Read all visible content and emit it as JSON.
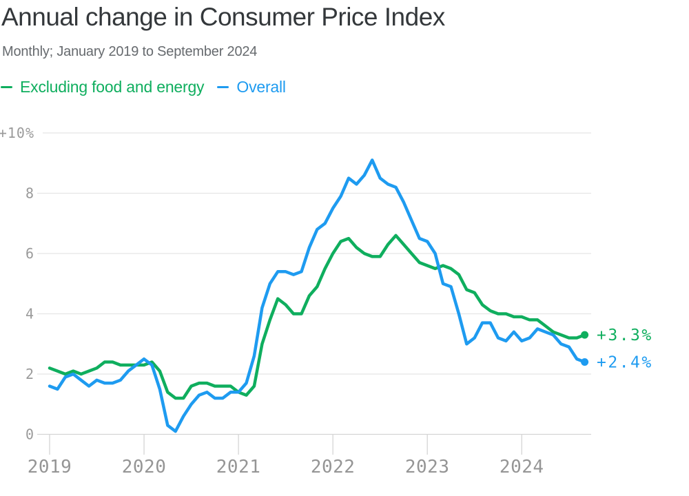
{
  "chart_data": {
    "type": "line",
    "title": "Annual change in Consumer Price Index",
    "subtitle": "Monthly; January 2019 to September 2024",
    "x_start": "2019-01",
    "x_end": "2024-09",
    "x_frequency": "monthly",
    "x_tick_labels": [
      "2019",
      "2020",
      "2021",
      "2022",
      "2023",
      "2024"
    ],
    "y_ticks": [
      0,
      2,
      4,
      6,
      8,
      10
    ],
    "y_tick_labels": [
      "0",
      "2",
      "4",
      "6",
      "8",
      "+10%"
    ],
    "ylim": [
      0,
      10
    ],
    "grid": "horizontal-only",
    "legend_position": "top-left",
    "background": "#ffffff",
    "series": [
      {
        "name": "Excluding food and energy",
        "color": "#0fae5e",
        "end_label": "+3.3%",
        "values": [
          2.2,
          2.1,
          2.0,
          2.1,
          2.0,
          2.1,
          2.2,
          2.4,
          2.4,
          2.3,
          2.3,
          2.3,
          2.3,
          2.4,
          2.1,
          1.4,
          1.2,
          1.2,
          1.6,
          1.7,
          1.7,
          1.6,
          1.6,
          1.6,
          1.4,
          1.3,
          1.6,
          3.0,
          3.8,
          4.5,
          4.3,
          4.0,
          4.0,
          4.6,
          4.9,
          5.5,
          6.0,
          6.4,
          6.5,
          6.2,
          6.0,
          5.9,
          5.9,
          6.3,
          6.6,
          6.3,
          6.0,
          5.7,
          5.6,
          5.5,
          5.6,
          5.5,
          5.3,
          4.8,
          4.7,
          4.3,
          4.1,
          4.0,
          4.0,
          3.9,
          3.9,
          3.8,
          3.8,
          3.6,
          3.4,
          3.3,
          3.2,
          3.2,
          3.3
        ]
      },
      {
        "name": "Overall",
        "color": "#1e9bf0",
        "end_label": "+2.4%",
        "values": [
          1.6,
          1.5,
          1.9,
          2.0,
          1.8,
          1.6,
          1.8,
          1.7,
          1.7,
          1.8,
          2.1,
          2.3,
          2.5,
          2.3,
          1.5,
          0.3,
          0.1,
          0.6,
          1.0,
          1.3,
          1.4,
          1.2,
          1.2,
          1.4,
          1.4,
          1.7,
          2.6,
          4.2,
          5.0,
          5.4,
          5.4,
          5.3,
          5.4,
          6.2,
          6.8,
          7.0,
          7.5,
          7.9,
          8.5,
          8.3,
          8.6,
          9.1,
          8.5,
          8.3,
          8.2,
          7.7,
          7.1,
          6.5,
          6.4,
          6.0,
          5.0,
          4.9,
          4.0,
          3.0,
          3.2,
          3.7,
          3.7,
          3.2,
          3.1,
          3.4,
          3.1,
          3.2,
          3.5,
          3.4,
          3.3,
          3.0,
          2.9,
          2.5,
          2.4
        ]
      }
    ]
  }
}
